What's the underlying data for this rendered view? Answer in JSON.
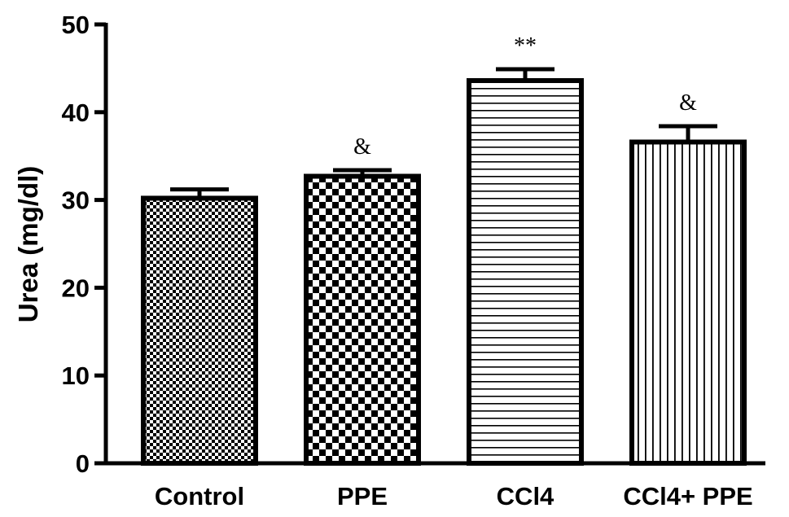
{
  "chart_data": {
    "type": "bar",
    "ylabel": "Urea (mg/dl)",
    "xlabel": "",
    "ylim": [
      0,
      50
    ],
    "yticks": [
      0,
      10,
      20,
      30,
      40,
      50
    ],
    "categories": [
      "Control",
      "PPE",
      "CCl4",
      "CCl4+ PPE"
    ],
    "values": [
      30.2,
      32.7,
      43.6,
      36.6
    ],
    "errors": [
      1.0,
      0.7,
      1.3,
      1.8
    ],
    "annotations": [
      "",
      "&",
      "**",
      "&"
    ],
    "patterns": [
      "fine-checker",
      "coarse-checker",
      "horizontal-lines",
      "vertical-lines"
    ],
    "bar_color": "#000000",
    "background": "#ffffff",
    "grid": false,
    "legend": "none"
  }
}
